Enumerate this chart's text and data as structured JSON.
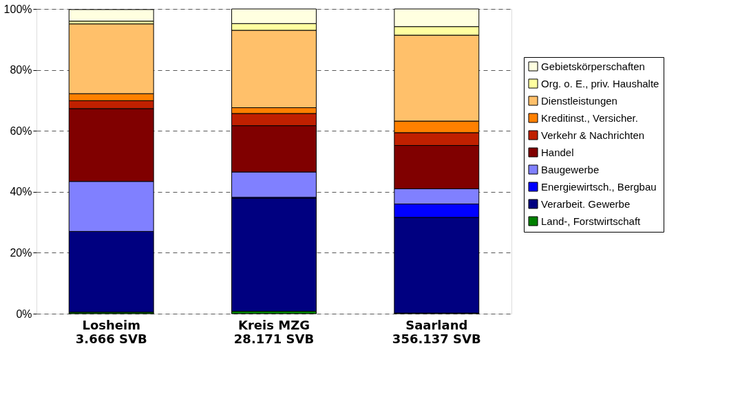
{
  "chart_data": {
    "type": "bar",
    "stacked": true,
    "categories": [
      "Losheim\n3.666 SVB",
      "Kreis MZG\n28.171 SVB",
      "Saarland\n356.137 SVB"
    ],
    "series": [
      {
        "name": "Land-, Forstwirtschaft",
        "color": "#008000",
        "values": [
          0.5,
          0.8,
          0.2
        ]
      },
      {
        "name": "Verarbeit. Gewerbe",
        "color": "#000080",
        "values": [
          26.5,
          37.1,
          31.4
        ]
      },
      {
        "name": "Energiewirtsch., Bergbau",
        "color": "#0000ff",
        "values": [
          null,
          0.3,
          4.4
        ]
      },
      {
        "name": "Baugewerbe",
        "color": "#8080ff",
        "values": [
          16.4,
          8.3,
          5.0
        ]
      },
      {
        "name": "Handel",
        "color": "#800000",
        "values": [
          23.9,
          15.2,
          14.2
        ]
      },
      {
        "name": "Verkehr & Nachrichten",
        "color": "#c02000",
        "values": [
          2.6,
          4.0,
          4.2
        ]
      },
      {
        "name": "Kreditinst., Versicher.",
        "color": "#ff8000",
        "values": [
          2.3,
          1.9,
          3.8
        ]
      },
      {
        "name": "Dienstleistungen",
        "color": "#ffc06a",
        "values": [
          22.9,
          25.4,
          28.2
        ]
      },
      {
        "name": "Org. o. E., priv. Haushalte",
        "color": "#ffffa0",
        "values": [
          0.9,
          2.2,
          2.8
        ]
      },
      {
        "name": "Gebietskörperschaften",
        "color": "#ffffe0",
        "values": [
          3.8,
          4.8,
          5.8
        ]
      }
    ],
    "ylim": [
      0,
      100
    ],
    "yticks": [
      {
        "value": 0,
        "label": "0%"
      },
      {
        "value": 20,
        "label": "20%"
      },
      {
        "value": 40,
        "label": "40%"
      },
      {
        "value": 60,
        "label": "60%"
      },
      {
        "value": 80,
        "label": "80%"
      },
      {
        "value": 100,
        "label": "100%"
      }
    ],
    "grid": "y",
    "legend": "right"
  }
}
